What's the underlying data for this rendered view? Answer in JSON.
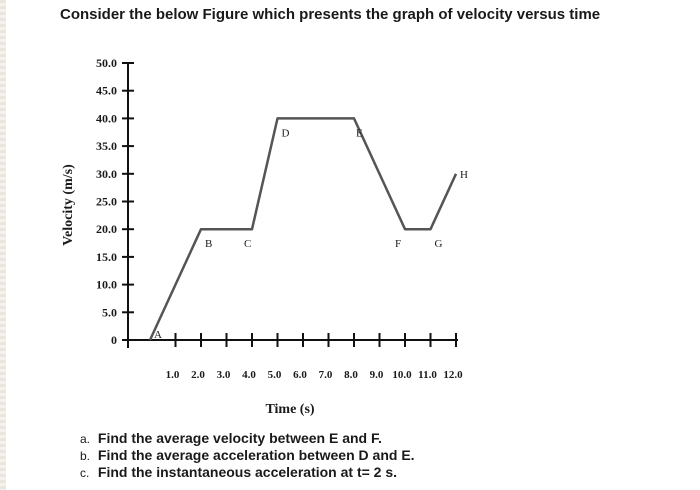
{
  "heading": "Consider the below Figure which presents the graph of velocity versus time",
  "chart_data": {
    "type": "line",
    "xlabel": "Time (s)",
    "ylabel": "Velocity (m/s)",
    "xlim": [
      0,
      12
    ],
    "ylim": [
      0,
      50
    ],
    "x_ticks": [
      1,
      2,
      3,
      4,
      5,
      6,
      7,
      8,
      9,
      10,
      11,
      12
    ],
    "x_tick_labels": [
      "1.0",
      "2.0",
      "3.0",
      "4.0",
      "5.0",
      "6.0",
      "7.0",
      "8.0",
      "9.0",
      "10.0",
      "11.0",
      "12.0"
    ],
    "y_ticks": [
      0,
      5,
      10,
      15,
      20,
      25,
      30,
      35,
      40,
      45,
      50
    ],
    "y_tick_labels": [
      "0",
      "5.0",
      "10.0",
      "15.0",
      "20.0",
      "25.0",
      "30.0",
      "35.0",
      "40.0",
      "45.0",
      "50.0"
    ],
    "points": [
      {
        "label": "A",
        "x": 0,
        "y": 0
      },
      {
        "label": "B",
        "x": 2,
        "y": 20
      },
      {
        "label": "C",
        "x": 4,
        "y": 20
      },
      {
        "label": "D",
        "x": 5,
        "y": 40
      },
      {
        "label": "E",
        "x": 8,
        "y": 40
      },
      {
        "label": "F",
        "x": 10,
        "y": 20
      },
      {
        "label": "G",
        "x": 11,
        "y": 20
      },
      {
        "label": "H",
        "x": 12,
        "y": 30
      }
    ],
    "grid": false,
    "line_color": "#555555"
  },
  "questions": [
    {
      "letter": "a.",
      "text": "Find the average velocity between E and F."
    },
    {
      "letter": "b.",
      "text": "Find the average acceleration between D and E."
    },
    {
      "letter": "c.",
      "text": "Find the instantaneous acceleration at t= 2 s."
    }
  ]
}
